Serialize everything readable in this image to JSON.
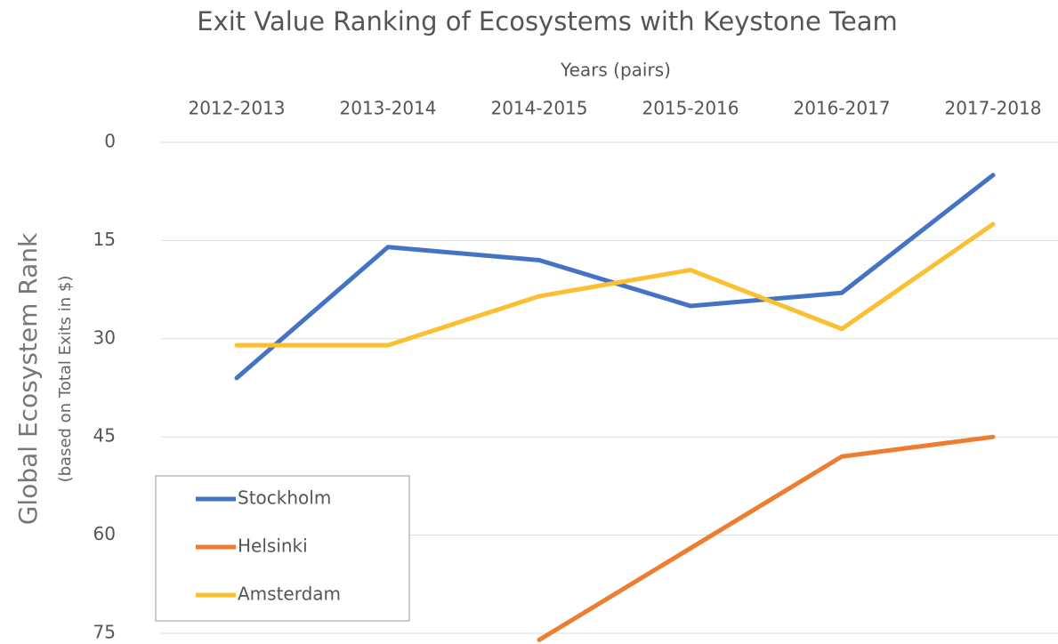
{
  "chart_data": {
    "type": "line",
    "title": "Exit Value Ranking of Ecosystems with Keystone Team",
    "x_label": "Years (pairs)",
    "y_label": "Global Ecosystem Rank",
    "y_sublabel": "(based on Total Exits in $)",
    "categories": [
      "2012-2013",
      "2013-2014",
      "2014-2015",
      "2015-2016",
      "2016-2017",
      "2017-2018"
    ],
    "series": [
      {
        "name": "Stockholm",
        "color": "#4472c4",
        "values": [
          36,
          16,
          18,
          25,
          23,
          5
        ]
      },
      {
        "name": "Helsinki",
        "color": "#ed7d31",
        "values": [
          null,
          null,
          76,
          62,
          48,
          45
        ]
      },
      {
        "name": "Amsterdam",
        "color": "#fbbf32",
        "values": [
          31,
          31,
          23.5,
          19.5,
          28.5,
          12.5
        ]
      }
    ],
    "ylim": [
      0,
      75
    ],
    "yticks": [
      0,
      15,
      30,
      45,
      60,
      75
    ],
    "y_inverted": true,
    "grid": true,
    "legend": "bottom-left"
  }
}
